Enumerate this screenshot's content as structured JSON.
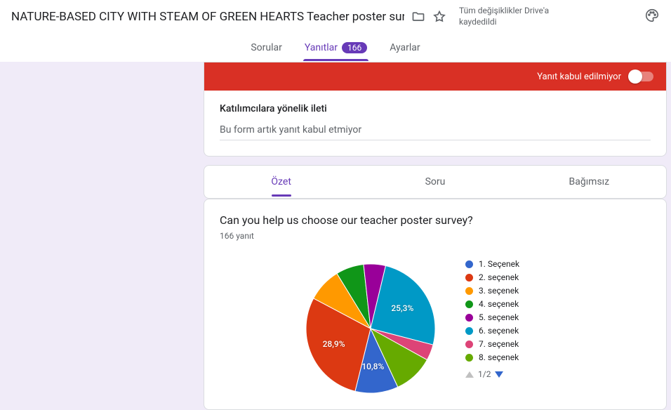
{
  "header": {
    "title": "NATURE-BASED CITY WITH STEAM OF GREEN HEARTS Teacher poster sur",
    "save_status_l1": "Tüm değişiklikler Drive'a",
    "save_status_l2": "kaydedildi"
  },
  "topnav": {
    "questions": "Sorular",
    "responses": "Yanıtlar",
    "responses_count": "166",
    "settings": "Ayarlar"
  },
  "accept": {
    "label": "Yanıt kabul edilmiyor"
  },
  "message": {
    "heading": "Katılımcılara yönelik ileti",
    "body": "Bu form artık yanıt kabul etmiyor"
  },
  "subtabs": {
    "summary": "Özet",
    "question": "Soru",
    "individual": "Bağımsız"
  },
  "question": {
    "title": "Can you help us choose our teacher poster survey?",
    "count": "166 yanıt"
  },
  "pie": {
    "slices": [
      {
        "label": "1. Seçenek",
        "value": 10.8,
        "color": "#3366cc"
      },
      {
        "label": "2. seçenek",
        "value": 28.9,
        "color": "#dc3912"
      },
      {
        "label": "3. seçenek",
        "value": 8.5,
        "color": "#ff9900"
      },
      {
        "label": "4. seçenek",
        "value": 7.0,
        "color": "#109618"
      },
      {
        "label": "5. seçenek",
        "value": 5.5,
        "color": "#990099"
      },
      {
        "label": "6. seçenek",
        "value": 25.3,
        "color": "#0099c6"
      },
      {
        "label": "7. seçenek",
        "value": 4.0,
        "color": "#dd4477"
      },
      {
        "label": "8. seçenek",
        "value": 10.0,
        "color": "#66aa00"
      }
    ],
    "visible_labels": {
      "slice0": "10,8%",
      "slice1": "28,9%",
      "slice5": "25,3%"
    },
    "label_fontsize": 12,
    "label_color": "#ffffff",
    "radius": 92,
    "inner_gap_color": "#ffffff",
    "start_angle_deg": 65,
    "background": "#ffffff"
  },
  "pager": {
    "text": "1/2"
  }
}
